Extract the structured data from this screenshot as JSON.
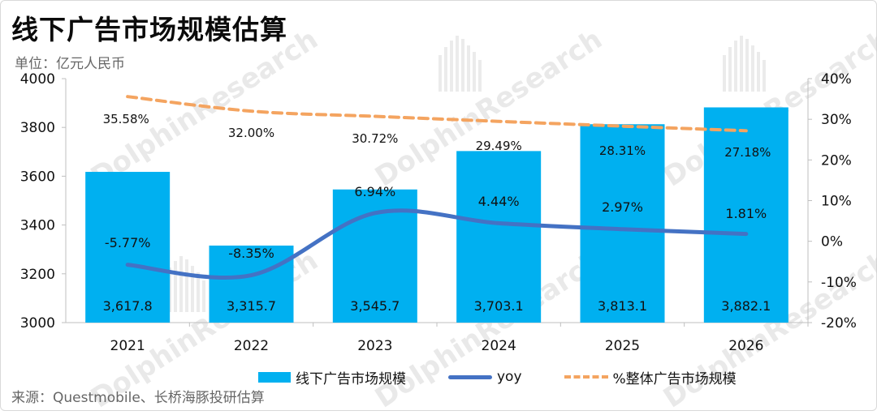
{
  "title": "线下广告市场规模估算",
  "unit_label": "单位：亿元人民币",
  "source": "来源：Questmobile、长桥海豚投研估算",
  "watermark": "DolphinResearch",
  "colors": {
    "bar": "#00b0f0",
    "yoy_line": "#4472c4",
    "share_line": "#f4a460"
  },
  "chart_data": {
    "type": "bar",
    "categories": [
      "2021",
      "2022",
      "2023",
      "2024",
      "2025",
      "2026"
    ],
    "series": [
      {
        "name": "线下广告市场规模",
        "type": "bar",
        "axis": "left",
        "values": [
          3617.8,
          3315.7,
          3545.7,
          3703.1,
          3813.1,
          3882.1
        ],
        "labels": [
          "3,617.8",
          "3,315.7",
          "3,545.7",
          "3,703.1",
          "3,813.1",
          "3,882.1"
        ]
      },
      {
        "name": "yoy",
        "type": "line",
        "axis": "right",
        "values": [
          -5.77,
          -8.35,
          6.94,
          4.44,
          2.97,
          1.81
        ],
        "labels": [
          "-5.77%",
          "-8.35%",
          "6.94%",
          "4.44%",
          "2.97%",
          "1.81%"
        ]
      },
      {
        "name": "%整体广告市场规模",
        "type": "line",
        "style": "dashed",
        "axis": "right",
        "values": [
          35.58,
          32.0,
          30.72,
          29.49,
          28.31,
          27.18
        ],
        "labels": [
          "35.58%",
          "32.00%",
          "30.72%",
          "29.49%",
          "28.31%",
          "27.18%"
        ]
      }
    ],
    "y_left": {
      "min": 3000,
      "max": 4000,
      "ticks": [
        "3000",
        "3200",
        "3400",
        "3600",
        "3800",
        "4000"
      ]
    },
    "y_right": {
      "min": -20,
      "max": 40,
      "ticks": [
        "-20%",
        "-10%",
        "0%",
        "10%",
        "20%",
        "30%",
        "40%"
      ]
    },
    "grid": false,
    "legend_position": "bottom"
  }
}
